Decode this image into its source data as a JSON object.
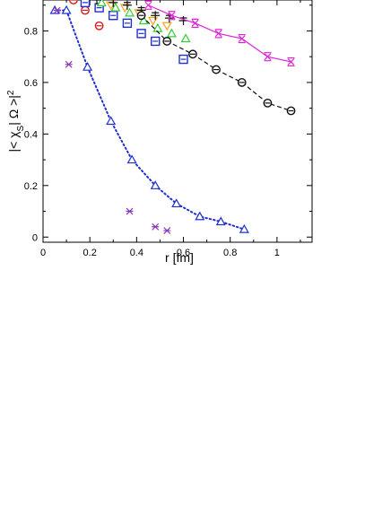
{
  "chart_data": {
    "type": "scatter",
    "xlabel": "r [fm]",
    "ylabel": "|< χS| Ω >|2",
    "ylabel_parts": {
      "main": "|< χ",
      "sub": "S",
      "after": "| Ω >|",
      "sup": "2"
    },
    "xlim": [
      0,
      1.15
    ],
    "ylim": [
      -0.02,
      0.92
    ],
    "x_ticks": [
      0,
      0.2,
      0.4,
      0.6,
      0.8,
      1
    ],
    "x_tick_labels": [
      "0",
      "0.2",
      "0.4",
      "0.6",
      "0.8",
      "1"
    ],
    "y_ticks": [
      0,
      0.2,
      0.4,
      0.6,
      0.8
    ],
    "y_tick_labels": [
      "0",
      "0.2",
      "0.4",
      "0.6",
      "0.8"
    ],
    "grid": false,
    "series": [
      {
        "marker": "triangle-up",
        "color": "#1f2fd0",
        "line": "dotted",
        "x": [
          0.05,
          0.1,
          0.19,
          0.29,
          0.38,
          0.48,
          0.57,
          0.67,
          0.76,
          0.86
        ],
        "y": [
          0.88,
          0.88,
          0.66,
          0.45,
          0.3,
          0.2,
          0.13,
          0.08,
          0.06,
          0.03
        ]
      },
      {
        "marker": "x",
        "color": "#8a38b8",
        "line": "none",
        "x": [
          0.06,
          0.11,
          0.37,
          0.48,
          0.53
        ],
        "y": [
          0.88,
          0.67,
          0.1,
          0.04,
          0.025
        ]
      },
      {
        "marker": "circle-bar",
        "color": "#d11a1a",
        "line": "none",
        "x": [
          0.13,
          0.18,
          0.24
        ],
        "y": [
          0.92,
          0.88,
          0.82
        ]
      },
      {
        "marker": "square-bar",
        "color": "#1f2fd0",
        "line": "none",
        "x": [
          0.18,
          0.24,
          0.3,
          0.36,
          0.42,
          0.48,
          0.6
        ],
        "y": [
          0.91,
          0.89,
          0.86,
          0.83,
          0.79,
          0.76,
          0.69
        ]
      },
      {
        "marker": "triangle-up",
        "color": "#2fd030",
        "line": "none",
        "x": [
          0.25,
          0.31,
          0.37,
          0.43,
          0.49,
          0.55,
          0.61
        ],
        "y": [
          0.91,
          0.89,
          0.87,
          0.84,
          0.81,
          0.79,
          0.77
        ]
      },
      {
        "marker": "triangle-down",
        "color": "#ffa31a",
        "line": "none",
        "x": [
          0.29,
          0.35,
          0.41,
          0.47,
          0.53
        ],
        "y": [
          0.9,
          0.89,
          0.87,
          0.84,
          0.82
        ]
      },
      {
        "marker": "plus",
        "color": "#111111",
        "line": "none",
        "x": [
          0.23,
          0.3,
          0.36,
          0.42,
          0.48,
          0.54,
          0.6
        ],
        "y": [
          0.92,
          0.91,
          0.9,
          0.88,
          0.86,
          0.85,
          0.84
        ]
      },
      {
        "marker": "circle-bar",
        "color": "#111111",
        "line": "dashed",
        "x": [
          0.42,
          0.53,
          0.64,
          0.74,
          0.85,
          0.96,
          1.06
        ],
        "y": [
          0.86,
          0.76,
          0.71,
          0.65,
          0.6,
          0.52,
          0.49
        ]
      },
      {
        "marker": "x-bar",
        "color": "#e022d8",
        "line": "solid",
        "x": [
          0.45,
          0.55,
          0.65,
          0.75,
          0.85,
          0.96,
          1.06
        ],
        "y": [
          0.9,
          0.86,
          0.83,
          0.79,
          0.77,
          0.7,
          0.68
        ]
      }
    ]
  }
}
